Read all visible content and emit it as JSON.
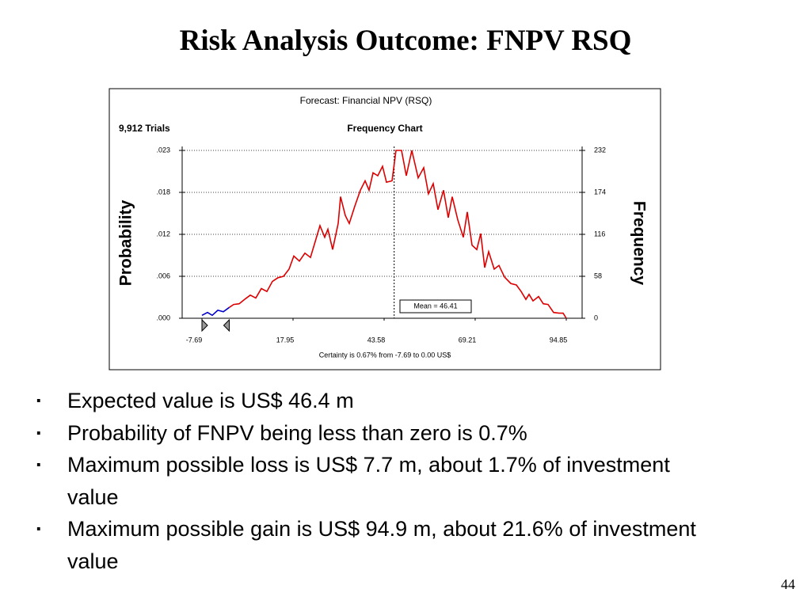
{
  "slide": {
    "title": "Risk Analysis Outcome: FNPV RSQ",
    "bullets": [
      "Expected value is US$ 46.4 m",
      "Probability of FNPV being less than zero is 0.7%",
      "Maximum possible loss is US$ 7.7 m, about 1.7% of investment value",
      "Maximum possible gain is US$ 94.9 m, about 21.6% of investment value"
    ],
    "page_number": "44"
  },
  "chart_data": {
    "type": "line",
    "title": "Forecast: Financial NPV (RSQ)",
    "trials": "9,912 Trials",
    "subtitle": "Frequency Chart",
    "ylabel": "Probability",
    "y2label": "Frequency",
    "xlim": [
      -13.26,
      99.31
    ],
    "xticks": [
      -7.69,
      17.95,
      43.58,
      69.21,
      94.85
    ],
    "ylim": [
      0,
      0.0234
    ],
    "yticks": [
      {
        "value": 0,
        "label": ".000"
      },
      {
        "value": 0.00585,
        "label": ".006"
      },
      {
        "value": 0.0117,
        "label": ".012"
      },
      {
        "value": 0.01755,
        "label": ".018"
      },
      {
        "value": 0.0234,
        "label": ".023"
      }
    ],
    "y2lim": [
      0,
      232
    ],
    "y2ticks": [
      0,
      58,
      116,
      174,
      232
    ],
    "grid": true,
    "mean": 46.41,
    "mean_label": "Mean = 46.41",
    "certainty_range": [
      -7.69,
      0.0
    ],
    "certainty_text": "Certainty is 0.67% from -7.69 to 0.00 US$",
    "series": [
      {
        "color": "#0000cc",
        "axis": "y2",
        "x": [
          -7.69,
          -6.13,
          -4.79,
          -3.23,
          -1.67,
          0.0
        ],
        "values": [
          4,
          8,
          4,
          11,
          9,
          15
        ]
      },
      {
        "color": "#dd0000",
        "axis": "y2",
        "x": [
          0.0,
          1.23,
          2.79,
          4.57,
          5.91,
          7.47,
          9.03,
          10.59,
          12.15,
          13.71,
          15.27,
          16.83,
          18.17,
          19.73,
          21.29,
          22.85,
          24.19,
          25.52,
          26.86,
          27.75,
          29.09,
          30.65,
          31.32,
          32.66,
          33.77,
          35.33,
          36.89,
          38.23,
          39.34,
          40.46,
          41.8,
          43.13,
          44.25,
          45.81,
          46.92,
          48.48,
          49.82,
          51.38,
          53.16,
          54.72,
          56.06,
          57.4,
          58.73,
          60.29,
          61.63,
          62.75,
          64.31,
          65.87,
          66.98,
          68.32,
          69.66,
          70.77,
          71.89,
          73.0,
          74.56,
          75.9,
          77.46,
          79.24,
          80.8,
          82.14,
          83.48,
          84.37,
          85.48,
          87.04,
          88.38,
          89.72,
          91.28,
          92.84,
          93.96,
          94.85
        ],
        "values": [
          15,
          19,
          20,
          27,
          32,
          28,
          41,
          37,
          51,
          56,
          58,
          68,
          86,
          79,
          90,
          84,
          106,
          128,
          112,
          123,
          95,
          131,
          168,
          142,
          131,
          155,
          177,
          190,
          177,
          201,
          197,
          210,
          188,
          190,
          232,
          232,
          197,
          232,
          194,
          208,
          172,
          186,
          150,
          177,
          139,
          168,
          136,
          112,
          147,
          101,
          95,
          117,
          70,
          92,
          68,
          73,
          57,
          48,
          46,
          37,
          26,
          33,
          24,
          30,
          20,
          19,
          8,
          7,
          7,
          0
        ]
      }
    ]
  }
}
